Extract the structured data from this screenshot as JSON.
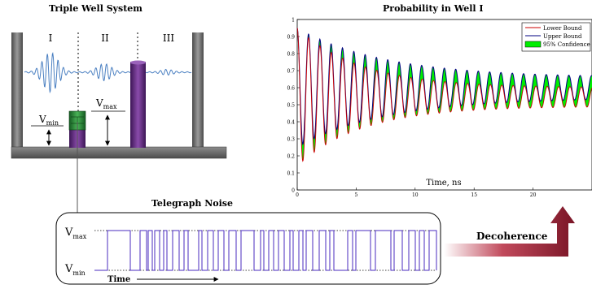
{
  "triple_well": {
    "title": "Triple Well System",
    "well_labels": [
      "I",
      "II",
      "III"
    ],
    "v_min": {
      "main": "V",
      "sub": "min"
    },
    "v_max": {
      "main": "V",
      "sub": "max"
    },
    "colors": {
      "wall": "#6e6e6e",
      "barrier": "#6a2c8a",
      "noisy_barrier": "#2f8a3a",
      "wave": "#4a7fc1"
    }
  },
  "probability_plot": {
    "title": "Probability in Well I",
    "xlabel": "Time, ns",
    "legend": [
      "Lower Bound",
      "Upper Bound",
      "95% Confidence"
    ]
  },
  "telegraph": {
    "title": "Telegraph Noise",
    "v_max": {
      "main": "V",
      "sub": "max"
    },
    "v_min": {
      "main": "V",
      "sub": "min"
    },
    "time_label": "Time",
    "signal_color": "#4a2bbf"
  },
  "arrow": {
    "label": "Decoherence",
    "color_start": "#ffffff",
    "color_end": "#8b1a2a"
  },
  "chart_data": {
    "type": "line",
    "title": "Probability in Well I",
    "xlabel": "Time, ns",
    "ylabel": "",
    "xlim": [
      0,
      25
    ],
    "ylim": [
      0,
      1
    ],
    "xticks": [
      0,
      5,
      10,
      15,
      20
    ],
    "yticks": [
      0,
      0.1,
      0.2,
      0.3,
      0.4,
      0.5,
      0.6,
      0.7,
      0.8,
      0.9,
      1
    ],
    "legend_position": "top-right",
    "series": [
      {
        "name": "Lower Bound",
        "color": "#cc0000",
        "envelope_upper_end": 0.6,
        "envelope_lower_end": 0.49
      },
      {
        "name": "Upper Bound",
        "color": "#000080",
        "envelope_upper_end": 0.66,
        "envelope_lower_end": 0.54
      },
      {
        "name": "95% Confidence",
        "color": "#00ee00"
      }
    ]
  }
}
